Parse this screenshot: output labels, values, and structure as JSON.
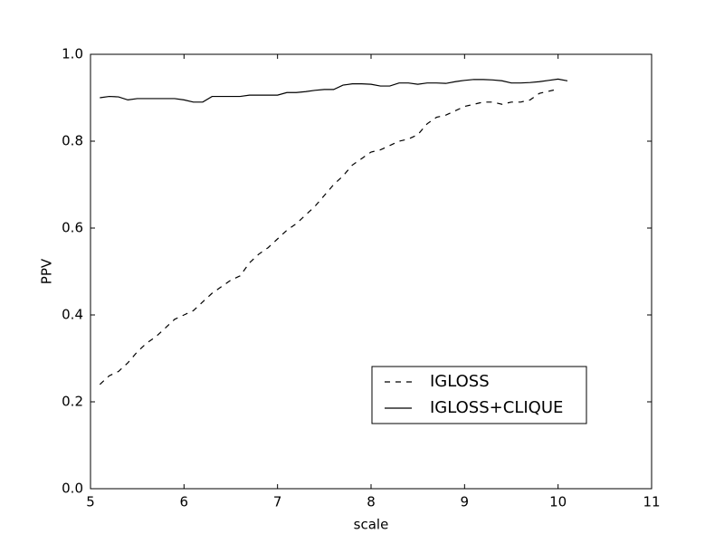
{
  "chart_data": {
    "type": "line",
    "xlabel": "scale",
    "ylabel": "PPV",
    "x": [
      5.1,
      5.2,
      5.3,
      5.4,
      5.5,
      5.6,
      5.7,
      5.8,
      5.9,
      6.0,
      6.1,
      6.2,
      6.3,
      6.4,
      6.5,
      6.6,
      6.7,
      6.8,
      6.9,
      7.0,
      7.1,
      7.2,
      7.3,
      7.4,
      7.5,
      7.6,
      7.7,
      7.8,
      7.9,
      8.0,
      8.1,
      8.2,
      8.3,
      8.4,
      8.5,
      8.6,
      8.7,
      8.8,
      8.9,
      9.0,
      9.1,
      9.2,
      9.3,
      9.4,
      9.5,
      9.6,
      9.7,
      9.8,
      9.9,
      10.0,
      10.1
    ],
    "series": [
      {
        "name": "IGLOSS",
        "color": "#000000",
        "linestyle": "dashed",
        "values": [
          0.24,
          0.26,
          0.27,
          0.29,
          0.315,
          0.335,
          0.35,
          0.37,
          0.39,
          0.4,
          0.41,
          0.43,
          0.45,
          0.465,
          0.48,
          0.49,
          0.52,
          0.54,
          0.555,
          0.575,
          0.595,
          0.61,
          0.63,
          0.65,
          0.675,
          0.7,
          0.72,
          0.745,
          0.76,
          0.775,
          0.78,
          0.79,
          0.8,
          0.805,
          0.815,
          0.84,
          0.855,
          0.86,
          0.87,
          0.88,
          0.885,
          0.89,
          0.89,
          0.885,
          0.89,
          0.89,
          0.895,
          0.91,
          0.915,
          0.92,
          null
        ]
      },
      {
        "name": "IGLOSS+CLIQUE",
        "color": "#000000",
        "linestyle": "solid",
        "values": [
          0.9,
          0.903,
          0.902,
          0.895,
          0.898,
          0.898,
          0.898,
          0.898,
          0.898,
          0.895,
          0.89,
          0.89,
          0.903,
          0.903,
          0.903,
          0.903,
          0.906,
          0.906,
          0.906,
          0.906,
          0.912,
          0.912,
          0.914,
          0.917,
          0.919,
          0.919,
          0.929,
          0.932,
          0.932,
          0.931,
          0.927,
          0.927,
          0.934,
          0.934,
          0.931,
          0.934,
          0.934,
          0.933,
          0.937,
          0.94,
          0.942,
          0.942,
          0.941,
          0.939,
          0.934,
          0.934,
          0.935,
          0.937,
          0.94,
          0.943,
          0.939
        ]
      }
    ],
    "xlim": [
      5,
      11
    ],
    "xticks": [
      5,
      6,
      7,
      8,
      9,
      10,
      11
    ],
    "ylim": [
      0,
      1
    ],
    "yticks": [
      {
        "value": 0,
        "label": "0.0"
      },
      0.2,
      0.4,
      0.6,
      0.8,
      {
        "value": 1,
        "label": "1.0"
      }
    ],
    "grid": false,
    "legend": "lower right"
  }
}
